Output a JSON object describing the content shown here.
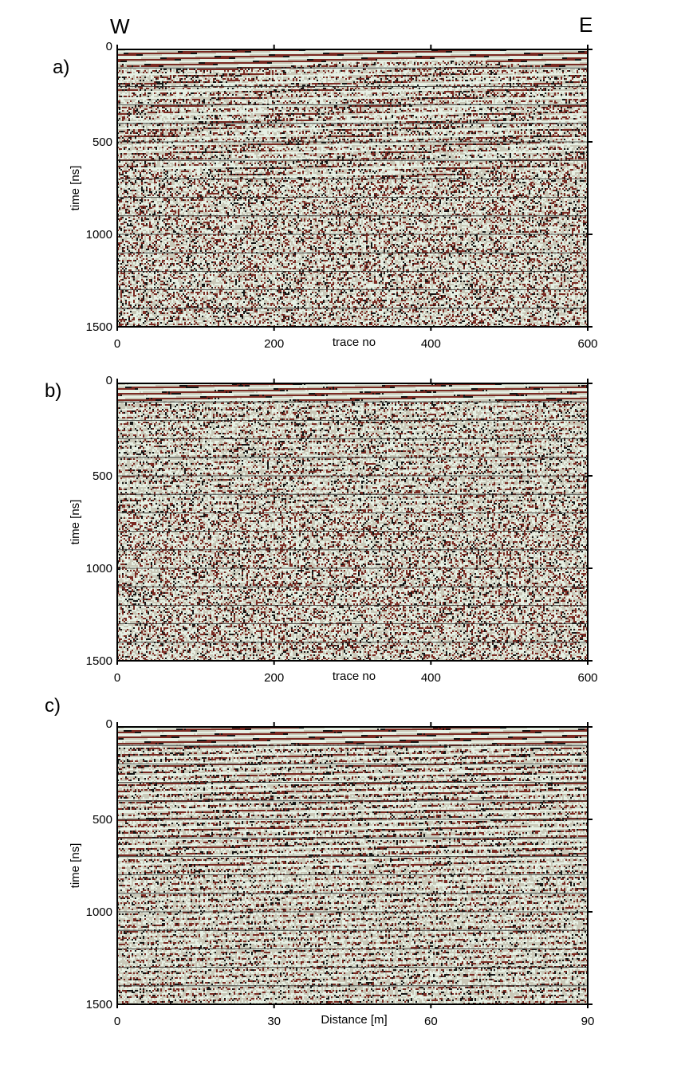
{
  "orientation": {
    "west": "W",
    "east": "E"
  },
  "chart_data": [
    {
      "type": "heatmap",
      "panel_label": "a)",
      "xlabel": "trace no",
      "ylabel": "time [ns]",
      "xlim": [
        0,
        600
      ],
      "ylim": [
        0,
        1500
      ],
      "y_inverted": true,
      "xticks": [
        0,
        200,
        400,
        600
      ],
      "xtick_labels": [
        "0",
        "200",
        "400",
        "600"
      ],
      "yticks": [
        0,
        500,
        1000,
        1500
      ],
      "ytick_labels": [
        "0",
        "500",
        "1000",
        "1500"
      ],
      "grid": "horizontal",
      "colors": {
        "noise": "#c9c8b8",
        "light": "#e6f0e4",
        "dark": "#7a2a22",
        "black": "#141414"
      }
    },
    {
      "type": "heatmap",
      "panel_label": "b)",
      "xlabel": "trace no",
      "ylabel": "time [ns]",
      "xlim": [
        0,
        600
      ],
      "ylim": [
        0,
        1500
      ],
      "y_inverted": true,
      "xticks": [
        0,
        200,
        400,
        600
      ],
      "xtick_labels": [
        "0",
        "200",
        "400",
        "600"
      ],
      "yticks": [
        0,
        500,
        1000,
        1500
      ],
      "ytick_labels": [
        "0",
        "500",
        "1000",
        "1500"
      ],
      "grid": "horizontal",
      "colors": {
        "noise": "#c9c8b8",
        "light": "#e6f0e4",
        "dark": "#7a2a22",
        "black": "#141414"
      }
    },
    {
      "type": "heatmap",
      "panel_label": "c)",
      "xlabel": "Distance [m]",
      "ylabel": "time [ns]",
      "xlim": [
        0,
        90
      ],
      "ylim": [
        0,
        1500
      ],
      "y_inverted": true,
      "xticks": [
        0,
        30,
        60,
        90
      ],
      "xtick_labels": [
        "0",
        "30",
        "60",
        "90"
      ],
      "yticks": [
        0,
        500,
        1000,
        1500
      ],
      "ytick_labels": [
        "0",
        "500",
        "1000",
        "1500"
      ],
      "grid": "horizontal",
      "colors": {
        "noise": "#c9c8b8",
        "light": "#e6f0e4",
        "dark": "#7a2a22",
        "black": "#141414"
      }
    }
  ]
}
